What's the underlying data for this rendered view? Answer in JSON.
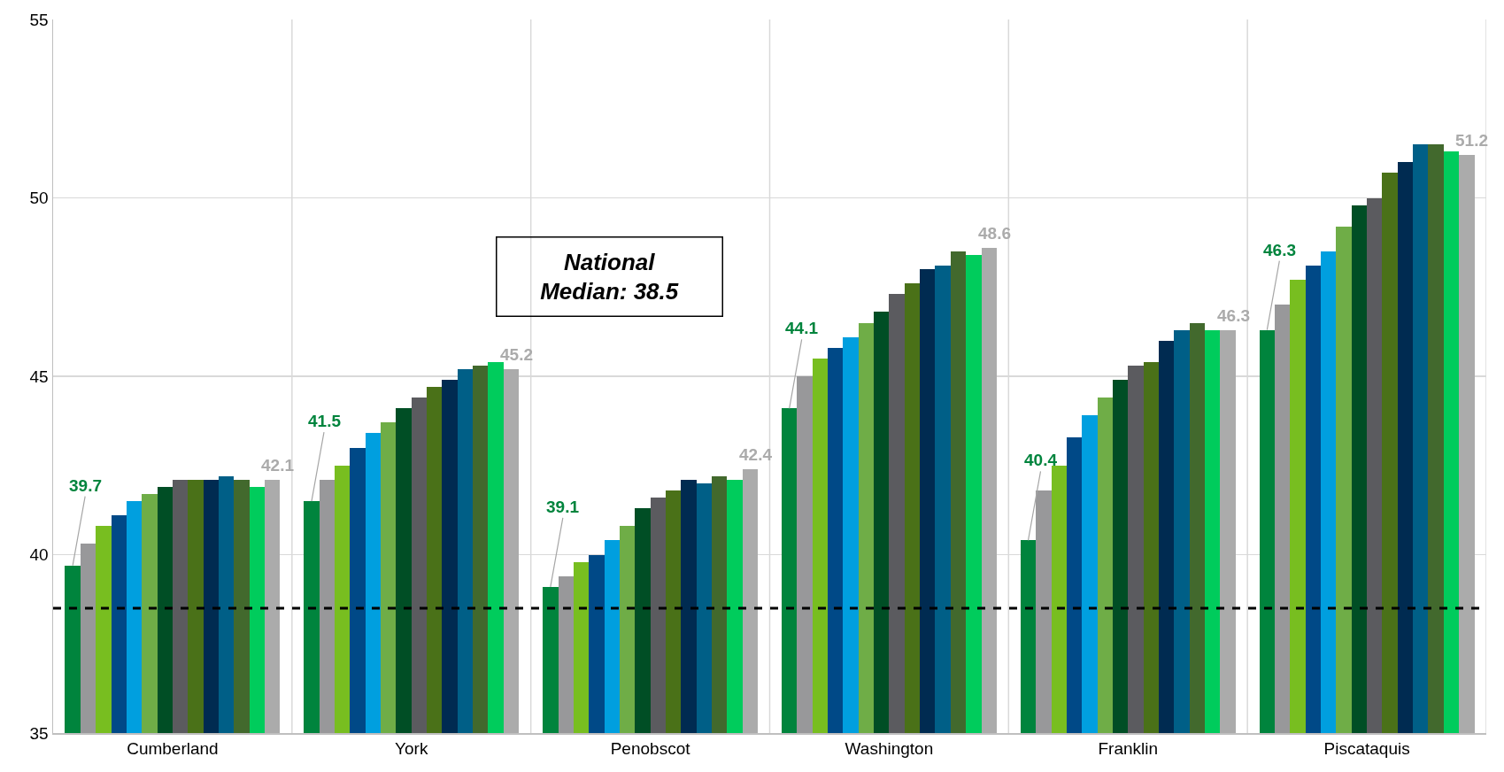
{
  "chart_data": {
    "type": "bar",
    "categories": [
      "Cumberland",
      "York",
      "Penobscot",
      "Washington",
      "Franklin",
      "Piscataquis"
    ],
    "ylim": [
      35,
      55
    ],
    "yticks": [
      35,
      40,
      45,
      50,
      55
    ],
    "grid": true,
    "series": [
      {
        "color": "#00843d",
        "values": [
          39.7,
          41.5,
          39.1,
          44.1,
          40.4,
          46.3
        ],
        "value_labels": [
          "39.7",
          "41.5",
          "39.1",
          "44.1",
          "40.4",
          "46.3"
        ]
      },
      {
        "color": "#98989a",
        "values": [
          40.3,
          42.1,
          39.4,
          45.0,
          41.8,
          47.0
        ]
      },
      {
        "color": "#78be20",
        "values": [
          40.8,
          42.5,
          39.8,
          45.5,
          42.5,
          47.7
        ]
      },
      {
        "color": "#004987",
        "values": [
          41.1,
          43.0,
          40.0,
          45.8,
          43.3,
          48.1
        ]
      },
      {
        "color": "#009fdf",
        "values": [
          41.5,
          43.4,
          40.4,
          46.1,
          43.9,
          48.5
        ]
      },
      {
        "color": "#6fad47",
        "values": [
          41.7,
          43.7,
          40.8,
          46.5,
          44.4,
          49.2
        ]
      },
      {
        "color": "#004e25",
        "values": [
          41.9,
          44.1,
          41.3,
          46.8,
          44.9,
          49.8
        ]
      },
      {
        "color": "#5b5b5f",
        "values": [
          42.1,
          44.4,
          41.6,
          47.3,
          45.3,
          50.0
        ]
      },
      {
        "color": "#4a7118",
        "values": [
          42.1,
          44.7,
          41.8,
          47.6,
          45.4,
          50.7
        ]
      },
      {
        "color": "#002b51",
        "values": [
          42.1,
          44.9,
          42.1,
          48.0,
          46.0,
          51.0
        ]
      },
      {
        "color": "#005f87",
        "values": [
          42.2,
          45.2,
          42.0,
          48.1,
          46.3,
          51.5
        ]
      },
      {
        "color": "#42692d",
        "values": [
          42.1,
          45.3,
          42.2,
          48.5,
          46.5,
          51.5
        ]
      },
      {
        "color": "#00cc5c",
        "values": [
          41.9,
          45.4,
          42.1,
          48.4,
          46.3,
          51.3
        ]
      },
      {
        "color": "#ababab",
        "values": [
          42.1,
          45.2,
          42.4,
          48.6,
          46.3,
          51.2
        ],
        "value_labels": [
          "42.1",
          "45.2",
          "42.4",
          "48.6",
          "46.3",
          "51.2"
        ]
      }
    ],
    "ref_lines": [
      {
        "axis": "y",
        "value": 38.5,
        "label": "National Median: 38.5",
        "color": "#000000",
        "line_style": "dashed"
      }
    ]
  }
}
